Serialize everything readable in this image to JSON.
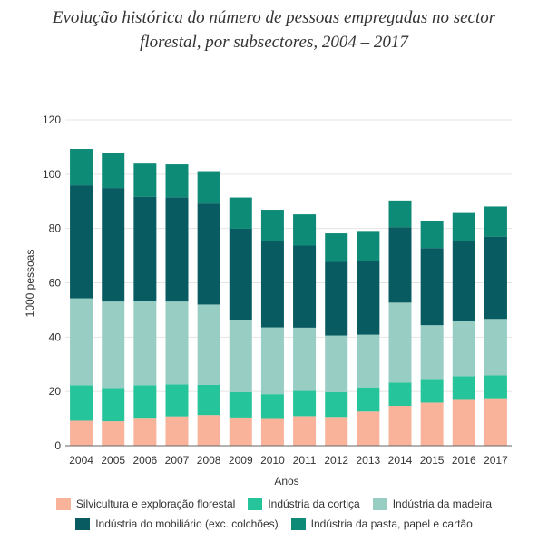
{
  "chart_data": {
    "type": "bar",
    "stacked": true,
    "title_lines": [
      "Evolução histórica do número de pessoas empregadas no sector",
      "florestal, por subsectores, 2004 – 2017"
    ],
    "xlabel": "Anos",
    "ylabel": "1000 pessoas",
    "ylim": [
      0,
      120
    ],
    "yticks": [
      0,
      20,
      40,
      60,
      80,
      100,
      120
    ],
    "grid": true,
    "categories": [
      "2004",
      "2005",
      "2006",
      "2007",
      "2008",
      "2009",
      "2010",
      "2011",
      "2012",
      "2013",
      "2014",
      "2015",
      "2016",
      "2017"
    ],
    "series": [
      {
        "name": "Silvicultura e exploração florestal",
        "color": "#f9b39b",
        "values": [
          9.2,
          9.0,
          10.3,
          10.8,
          11.3,
          10.4,
          10.2,
          10.9,
          10.6,
          12.6,
          14.7,
          15.9,
          16.9,
          17.5
        ]
      },
      {
        "name": "Indústria da cortiça",
        "color": "#26c49a",
        "values": [
          13.1,
          12.3,
          12.0,
          11.8,
          11.1,
          9.4,
          8.8,
          9.3,
          9.2,
          8.9,
          8.6,
          8.4,
          8.7,
          8.4
        ]
      },
      {
        "name": "Indústria da madeira",
        "color": "#98cdc3",
        "values": [
          32.0,
          31.8,
          30.9,
          30.5,
          29.6,
          26.4,
          24.6,
          23.3,
          20.8,
          19.4,
          29.4,
          20.1,
          20.2,
          20.8
        ]
      },
      {
        "name": "Indústria do mobiliário (exc. colchões)",
        "color": "#075b61",
        "values": [
          41.6,
          41.8,
          38.5,
          38.4,
          37.2,
          33.7,
          31.6,
          30.2,
          27.1,
          27.0,
          27.8,
          28.4,
          29.4,
          30.3
        ]
      },
      {
        "name": "Indústria da pasta, papel e cartão",
        "color": "#0e8b77",
        "values": [
          13.4,
          12.8,
          12.2,
          12.1,
          11.9,
          11.5,
          11.7,
          11.5,
          10.5,
          11.2,
          9.8,
          10.1,
          10.5,
          11.1
        ]
      }
    ]
  }
}
